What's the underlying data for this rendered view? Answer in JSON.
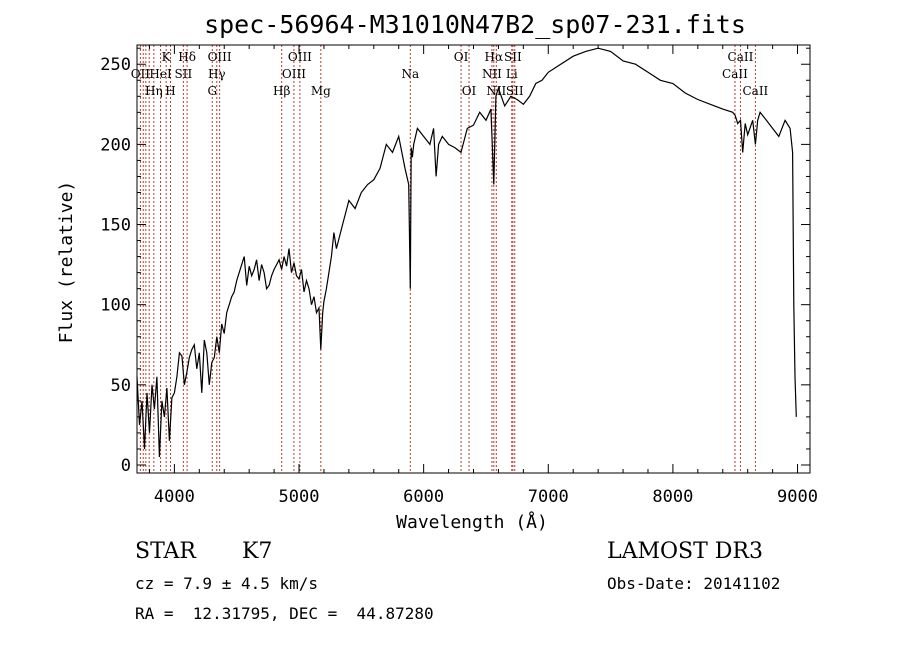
{
  "chart_data": {
    "type": "line",
    "title": "spec-56964-M31010N47B2_sp07-231.fits",
    "xlabel": "Wavelength (Å)",
    "ylabel": "Flux (relative)",
    "xlim": [
      3700,
      9100
    ],
    "ylim": [
      -5,
      262
    ],
    "xticks": [
      4000,
      5000,
      6000,
      7000,
      8000,
      9000
    ],
    "yticks": [
      0,
      50,
      100,
      150,
      200,
      250
    ],
    "series": [
      {
        "name": "flux",
        "x": [
          3700,
          3720,
          3740,
          3760,
          3780,
          3800,
          3820,
          3840,
          3860,
          3880,
          3900,
          3920,
          3940,
          3960,
          3980,
          4000,
          4020,
          4040,
          4060,
          4080,
          4100,
          4120,
          4140,
          4160,
          4180,
          4200,
          4220,
          4240,
          4260,
          4280,
          4300,
          4320,
          4340,
          4360,
          4380,
          4400,
          4420,
          4440,
          4460,
          4480,
          4500,
          4520,
          4540,
          4560,
          4580,
          4600,
          4620,
          4640,
          4660,
          4680,
          4700,
          4720,
          4740,
          4760,
          4780,
          4800,
          4820,
          4840,
          4860,
          4880,
          4900,
          4920,
          4940,
          4960,
          4980,
          5000,
          5020,
          5040,
          5060,
          5080,
          5100,
          5120,
          5140,
          5160,
          5175,
          5190,
          5200,
          5220,
          5240,
          5260,
          5280,
          5300,
          5350,
          5400,
          5450,
          5500,
          5550,
          5600,
          5650,
          5700,
          5750,
          5800,
          5850,
          5880,
          5893,
          5900,
          5910,
          5920,
          5950,
          6000,
          6050,
          6080,
          6100,
          6120,
          6150,
          6200,
          6250,
          6300,
          6350,
          6400,
          6450,
          6500,
          6540,
          6563,
          6580,
          6600,
          6650,
          6700,
          6750,
          6800,
          6850,
          6900,
          6950,
          7000,
          7100,
          7200,
          7300,
          7400,
          7500,
          7600,
          7700,
          7800,
          7900,
          8000,
          8100,
          8200,
          8300,
          8400,
          8480,
          8500,
          8520,
          8542,
          8560,
          8580,
          8600,
          8640,
          8662,
          8680,
          8700,
          8750,
          8800,
          8850,
          8900,
          8940,
          8960,
          8970,
          8980,
          8990
        ],
        "y": [
          55,
          25,
          40,
          10,
          45,
          20,
          50,
          35,
          55,
          5,
          40,
          30,
          48,
          15,
          42,
          45,
          55,
          70,
          68,
          50,
          58,
          67,
          72,
          75,
          60,
          70,
          45,
          78,
          70,
          50,
          64,
          67,
          80,
          70,
          88,
          82,
          95,
          100,
          105,
          108,
          115,
          120,
          125,
          130,
          112,
          124,
          118,
          122,
          128,
          115,
          125,
          120,
          110,
          112,
          118,
          122,
          125,
          128,
          122,
          130,
          124,
          135,
          120,
          126,
          118,
          116,
          122,
          108,
          115,
          110,
          100,
          105,
          95,
          98,
          72,
          95,
          102,
          110,
          120,
          130,
          145,
          135,
          150,
          165,
          160,
          170,
          175,
          178,
          185,
          200,
          195,
          205,
          185,
          175,
          110,
          198,
          192,
          200,
          210,
          205,
          200,
          210,
          180,
          200,
          205,
          200,
          198,
          195,
          210,
          212,
          220,
          215,
          222,
          175,
          230,
          235,
          224,
          230,
          228,
          225,
          230,
          238,
          240,
          245,
          250,
          255,
          258,
          260,
          258,
          252,
          250,
          245,
          240,
          238,
          232,
          228,
          225,
          222,
          220,
          218,
          213,
          215,
          195,
          213,
          206,
          215,
          200,
          215,
          220,
          215,
          210,
          205,
          215,
          210,
          195,
          100,
          55,
          30
        ],
        "color": "#000000"
      }
    ],
    "line_markers": [
      {
        "wavelength": 3727,
        "label": "OII",
        "row": 2
      },
      {
        "wavelength": 3750,
        "label": "",
        "row": 0
      },
      {
        "wavelength": 3771,
        "label": "",
        "row": 0
      },
      {
        "wavelength": 3798,
        "label": "",
        "row": 0
      },
      {
        "wavelength": 3835,
        "label": "Hη",
        "row": 3
      },
      {
        "wavelength": 3889,
        "label": "HeI",
        "row": 2
      },
      {
        "wavelength": 3934,
        "label": "K",
        "row": 1
      },
      {
        "wavelength": 3969,
        "label": "H",
        "row": 3
      },
      {
        "wavelength": 4072,
        "label": "SII",
        "row": 2
      },
      {
        "wavelength": 4102,
        "label": "Hδ",
        "row": 1
      },
      {
        "wavelength": 4304,
        "label": "G",
        "row": 3
      },
      {
        "wavelength": 4340,
        "label": "Hγ",
        "row": 2
      },
      {
        "wavelength": 4363,
        "label": "OIII",
        "row": 1
      },
      {
        "wavelength": 4861,
        "label": "Hβ",
        "row": 3
      },
      {
        "wavelength": 4959,
        "label": "OIII",
        "row": 2
      },
      {
        "wavelength": 5007,
        "label": "OIII",
        "row": 1
      },
      {
        "wavelength": 5175,
        "label": "Mg",
        "row": 3
      },
      {
        "wavelength": 5893,
        "label": "Na",
        "row": 2
      },
      {
        "wavelength": 6300,
        "label": "OI",
        "row": 1
      },
      {
        "wavelength": 6364,
        "label": "OI",
        "row": 3
      },
      {
        "wavelength": 6548,
        "label": "NII",
        "row": 2
      },
      {
        "wavelength": 6563,
        "label": "Hα",
        "row": 1
      },
      {
        "wavelength": 6583,
        "label": "NII",
        "row": 3
      },
      {
        "wavelength": 6707,
        "label": "Li",
        "row": 2
      },
      {
        "wavelength": 6716,
        "label": "SII",
        "row": 1
      },
      {
        "wavelength": 6731,
        "label": "SII",
        "row": 3
      },
      {
        "wavelength": 8498,
        "label": "CaII",
        "row": 2
      },
      {
        "wavelength": 8542,
        "label": "CaII",
        "row": 1
      },
      {
        "wavelength": 8662,
        "label": "CaII",
        "row": 3
      }
    ],
    "marker_color": "#c0392b"
  },
  "info": {
    "class_label": "STAR",
    "subclass": "K7",
    "survey": "LAMOST DR3",
    "cz": "cz = 7.9 ± 4.5 km/s",
    "obs_date": "Obs-Date: 20141102",
    "coords": "RA =  12.31795, DEC =  44.87280"
  }
}
